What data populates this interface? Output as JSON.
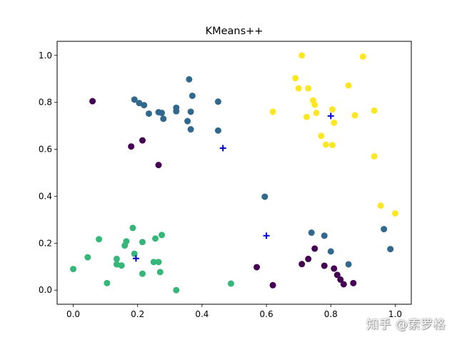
{
  "chart_data": {
    "type": "scatter",
    "title": "KMeans++",
    "xlabel": "",
    "ylabel": "",
    "xlim": [
      -0.05,
      1.05
    ],
    "ylim": [
      -0.06,
      1.06
    ],
    "xticks": [
      0.0,
      0.2,
      0.4,
      0.6,
      0.8,
      1.0
    ],
    "yticks": [
      0.0,
      0.2,
      0.4,
      0.6,
      0.8,
      1.0
    ],
    "xtick_labels": [
      "0.0",
      "0.2",
      "0.4",
      "0.6",
      "0.8",
      "1.0"
    ],
    "ytick_labels": [
      "0.0",
      "0.2",
      "0.4",
      "0.6",
      "0.8",
      "1.0"
    ],
    "grid": false,
    "legend": "none",
    "series": [
      {
        "color": "#440154",
        "points": [
          [
            0.06,
            0.805
          ],
          [
            0.18,
            0.612
          ],
          [
            0.215,
            0.638
          ],
          [
            0.265,
            0.533
          ],
          [
            0.57,
            0.098
          ],
          [
            0.62,
            0.021
          ],
          [
            0.71,
            0.111
          ],
          [
            0.73,
            0.133
          ],
          [
            0.75,
            0.177
          ],
          [
            0.78,
            0.104
          ],
          [
            0.81,
            0.092
          ],
          [
            0.82,
            0.065
          ],
          [
            0.83,
            0.045
          ],
          [
            0.84,
            0.025
          ],
          [
            0.87,
            0.03
          ]
        ]
      },
      {
        "color": "#31688e",
        "points": [
          [
            0.19,
            0.812
          ],
          [
            0.205,
            0.797
          ],
          [
            0.22,
            0.788
          ],
          [
            0.235,
            0.752
          ],
          [
            0.265,
            0.758
          ],
          [
            0.275,
            0.755
          ],
          [
            0.28,
            0.73
          ],
          [
            0.32,
            0.777
          ],
          [
            0.32,
            0.762
          ],
          [
            0.355,
            0.72
          ],
          [
            0.36,
            0.898
          ],
          [
            0.365,
            0.76
          ],
          [
            0.365,
            0.685
          ],
          [
            0.37,
            0.828
          ],
          [
            0.45,
            0.803
          ],
          [
            0.45,
            0.68
          ],
          [
            0.595,
            0.398
          ],
          [
            0.74,
            0.245
          ],
          [
            0.78,
            0.232
          ],
          [
            0.8,
            0.165
          ],
          [
            0.855,
            0.11
          ],
          [
            0.965,
            0.26
          ],
          [
            0.985,
            0.175
          ]
        ]
      },
      {
        "color": "#35b779",
        "points": [
          [
            0.0,
            0.09
          ],
          [
            0.045,
            0.14
          ],
          [
            0.08,
            0.217
          ],
          [
            0.105,
            0.03
          ],
          [
            0.135,
            0.133
          ],
          [
            0.135,
            0.11
          ],
          [
            0.15,
            0.105
          ],
          [
            0.16,
            0.19
          ],
          [
            0.165,
            0.208
          ],
          [
            0.185,
            0.265
          ],
          [
            0.19,
            0.155
          ],
          [
            0.215,
            0.205
          ],
          [
            0.215,
            0.07
          ],
          [
            0.25,
            0.12
          ],
          [
            0.255,
            0.22
          ],
          [
            0.265,
            0.12
          ],
          [
            0.27,
            0.077
          ],
          [
            0.275,
            0.235
          ],
          [
            0.32,
            0.0
          ],
          [
            0.49,
            0.028
          ]
        ]
      },
      {
        "color": "#fde725",
        "points": [
          [
            0.62,
            0.76
          ],
          [
            0.69,
            0.903
          ],
          [
            0.7,
            0.86
          ],
          [
            0.71,
            1.0
          ],
          [
            0.725,
            0.738
          ],
          [
            0.73,
            0.86
          ],
          [
            0.745,
            0.808
          ],
          [
            0.75,
            0.79
          ],
          [
            0.755,
            0.755
          ],
          [
            0.77,
            0.657
          ],
          [
            0.785,
            0.62
          ],
          [
            0.805,
            0.618
          ],
          [
            0.805,
            0.77
          ],
          [
            0.81,
            0.713
          ],
          [
            0.855,
            0.872
          ],
          [
            0.875,
            0.745
          ],
          [
            0.9,
            0.995
          ],
          [
            0.935,
            0.765
          ],
          [
            0.935,
            0.57
          ],
          [
            0.955,
            0.36
          ],
          [
            1.0,
            0.327
          ]
        ]
      }
    ],
    "centroids": {
      "color": "#0000cc",
      "marker": "plus",
      "points": [
        [
          0.195,
          0.135
        ],
        [
          0.465,
          0.605
        ],
        [
          0.6,
          0.232
        ],
        [
          0.8,
          0.742
        ]
      ]
    }
  },
  "watermark": "知乎 @索罗格"
}
